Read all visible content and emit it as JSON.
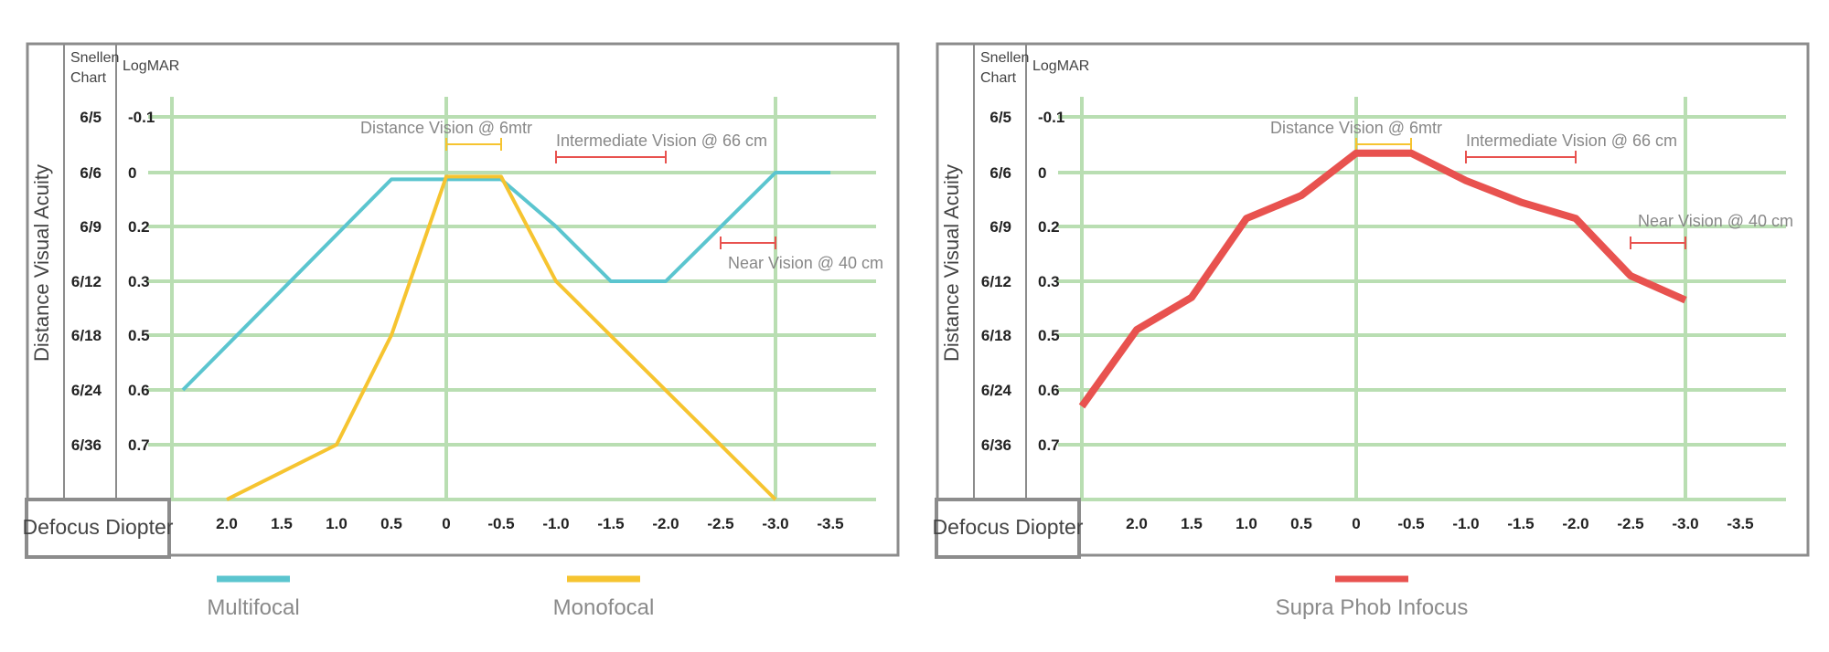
{
  "chart_data": [
    {
      "type": "line",
      "title": "",
      "snellen_header": [
        "Snellen",
        "Chart"
      ],
      "logmar_header": "LogMAR",
      "ylabel": "Distance Visual Acuity",
      "xlabel": "Defocus Diopter",
      "x_ticks": [
        "2.0",
        "1.5",
        "1.0",
        "0.5",
        "0",
        "-0.5",
        "-1.0",
        "-1.5",
        "-2.0",
        "-2.5",
        "-3.0",
        "-3.5"
      ],
      "x_vertical_gridlines": [
        2.5,
        0,
        -3.0
      ],
      "x_range": [
        2.5,
        -4.0
      ],
      "y_range": [
        -0.1,
        0.9
      ],
      "y_rows": [
        {
          "snellen": "6/5",
          "logmar": "-0.1",
          "value": -0.1
        },
        {
          "snellen": "6/6",
          "logmar": "0",
          "value": 0
        },
        {
          "snellen": "6/9",
          "logmar": "0.2",
          "value": 0.2
        },
        {
          "snellen": "6/12",
          "logmar": "0.3",
          "value": 0.3
        },
        {
          "snellen": "6/18",
          "logmar": "0.5",
          "value": 0.5
        },
        {
          "snellen": "6/24",
          "logmar": "0.6",
          "value": 0.6
        },
        {
          "snellen": "6/36",
          "logmar": "0.7",
          "value": 0.7
        }
      ],
      "zones": [
        {
          "label": "Distance Vision @ 6mtr",
          "x_from": 0,
          "x_to": -0.5,
          "color": "#f6c430"
        },
        {
          "label": "Intermediate Vision @ 66 cm",
          "x_from": -1.0,
          "x_to": -2.0,
          "color": "#e8524f"
        },
        {
          "label": "Near Vision @ 40 cm",
          "x_from": -2.5,
          "x_to": -3.0,
          "color": "#e8524f"
        }
      ],
      "series": [
        {
          "name": "Multifocal",
          "color": "#5bc5cf",
          "points": [
            [
              2.4,
              0.6
            ],
            [
              0.5,
              0.025
            ],
            [
              -0.5,
              0.025
            ],
            [
              -1.0,
              0.2
            ],
            [
              -1.5,
              0.3
            ],
            [
              -2.0,
              0.3
            ],
            [
              -3.0,
              0
            ],
            [
              -3.5,
              0
            ]
          ]
        },
        {
          "name": "Monofocal",
          "color": "#f6c430",
          "points": [
            [
              2.0,
              0.9
            ],
            [
              1.0,
              0.7
            ],
            [
              0.5,
              0.5
            ],
            [
              0,
              0.015
            ],
            [
              -0.5,
              0.015
            ],
            [
              -1.0,
              0.3
            ],
            [
              -3.0,
              0.9
            ]
          ]
        }
      ],
      "legend": [
        "Multifocal",
        "Monofocal"
      ]
    },
    {
      "type": "line",
      "title": "",
      "snellen_header": [
        "Snellen",
        "Chart"
      ],
      "logmar_header": "LogMAR",
      "ylabel": "Distance Visual Acuity",
      "xlabel": "Defocus Diopter",
      "x_ticks": [
        "2.0",
        "1.5",
        "1.0",
        "0.5",
        "0",
        "-0.5",
        "-1.0",
        "-1.5",
        "-2.0",
        "-2.5",
        "-3.0",
        "-3.5"
      ],
      "x_vertical_gridlines": [
        2.5,
        0,
        -3.0
      ],
      "x_range": [
        2.5,
        -4.0
      ],
      "y_range": [
        -0.1,
        0.9
      ],
      "y_rows": [
        {
          "snellen": "6/5",
          "logmar": "-0.1",
          "value": -0.1
        },
        {
          "snellen": "6/6",
          "logmar": "0",
          "value": 0
        },
        {
          "snellen": "6/9",
          "logmar": "0.2",
          "value": 0.2
        },
        {
          "snellen": "6/12",
          "logmar": "0.3",
          "value": 0.3
        },
        {
          "snellen": "6/18",
          "logmar": "0.5",
          "value": 0.5
        },
        {
          "snellen": "6/24",
          "logmar": "0.6",
          "value": 0.6
        },
        {
          "snellen": "6/36",
          "logmar": "0.7",
          "value": 0.7
        }
      ],
      "zones": [
        {
          "label": "Distance Vision @ 6mtr",
          "x_from": 0,
          "x_to": -0.5,
          "color": "#f6c430"
        },
        {
          "label": "Intermediate Vision @ 66 cm",
          "x_from": -1.0,
          "x_to": -2.0,
          "color": "#e8524f"
        },
        {
          "label": "Near Vision @ 40 cm",
          "x_from": -2.5,
          "x_to": -3.0,
          "color": "#e8524f"
        }
      ],
      "series": [
        {
          "name": "Supra Phob Infocus",
          "color": "#e8524f",
          "points": [
            [
              2.5,
              0.63
            ],
            [
              2.0,
              0.48
            ],
            [
              1.5,
              0.36
            ],
            [
              1.0,
              0.17
            ],
            [
              0.5,
              0.085
            ],
            [
              0,
              -0.035
            ],
            [
              -0.5,
              -0.035
            ],
            [
              -1.0,
              0.03
            ],
            [
              -1.5,
              0.11
            ],
            [
              -2.0,
              0.17
            ],
            [
              -2.5,
              0.29
            ],
            [
              -3.0,
              0.37
            ]
          ]
        }
      ],
      "legend": [
        "Supra Phob Infocus"
      ]
    }
  ]
}
